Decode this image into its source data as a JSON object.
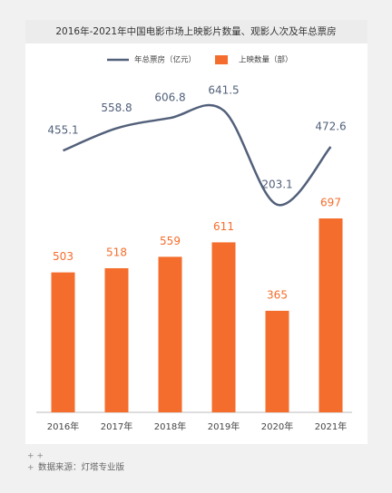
{
  "chart_data": {
    "type": "bar",
    "title": "2016年-2021年中国电影市场上映影片数量、观影人次及年总票房",
    "categories": [
      "2016年",
      "2017年",
      "2018年",
      "2019年",
      "2020年",
      "2021年"
    ],
    "series": [
      {
        "name": "年总票房（亿元）",
        "type": "line",
        "color": "#52607a",
        "axis": "y2",
        "values": [
          455.1,
          558.8,
          606.8,
          641.5,
          203.1,
          472.6
        ]
      },
      {
        "name": "上映数量（部）",
        "type": "bar",
        "color": "#f46d2c",
        "values": [
          503,
          518,
          559,
          611,
          365,
          697
        ]
      }
    ],
    "ylim": [
      0,
      1000
    ],
    "y2lim": [
      0,
      1000
    ],
    "source": "数据来源：灯塔专业版"
  }
}
